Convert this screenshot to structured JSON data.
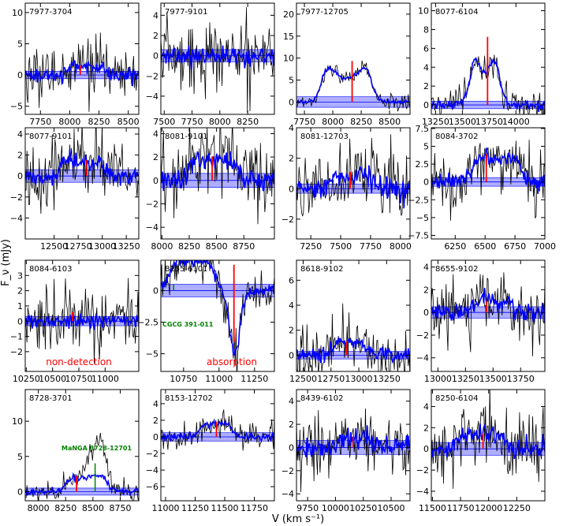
{
  "figure": {
    "ylabel": "F_ν (mJy)",
    "xlabel": "V (km s⁻¹)",
    "colors": {
      "spectrum": "#000000",
      "model": "#0000ff",
      "band": "#6b6bff",
      "marker": "#ff0000",
      "companion": "#008000",
      "note": "#ff0000"
    }
  },
  "chart_data": [
    {
      "type": "line",
      "title": "7977-3704",
      "xlim": [
        7620,
        8590
      ],
      "ylim": [
        -6.3,
        11.5
      ],
      "xticks": [
        7750,
        8000,
        8250,
        8500
      ],
      "yticks": [
        -5,
        0,
        5,
        10
      ],
      "profile": {
        "v1": 7980,
        "v2": 8300,
        "peak": 1.8,
        "horn": 0.2
      },
      "noise": 2.1,
      "band": 0.6,
      "vsys": 8090
    },
    {
      "type": "line",
      "title": "7977-9101",
      "xlim": [
        7470,
        8490
      ],
      "ylim": [
        -5.8,
        5.2
      ],
      "xticks": [
        7500,
        7750,
        8000,
        8250
      ],
      "yticks": [
        -4,
        -2,
        0,
        2,
        4
      ],
      "profile": null,
      "noise": 1.7,
      "band": 0.6,
      "vsys": null
    },
    {
      "type": "line",
      "title": "7977-12705",
      "xlim": [
        7680,
        8680
      ],
      "ylim": [
        -2.8,
        22.5
      ],
      "xticks": [
        7750,
        8000,
        8250,
        8500
      ],
      "yticks": [
        0,
        5,
        10,
        15,
        20
      ],
      "profile": {
        "v1": 7910,
        "v2": 8330,
        "peak": 11,
        "horn": 0.5
      },
      "noise": 0.9,
      "band": 1.2,
      "vsys": 8170
    },
    {
      "type": "line",
      "title": "8077-6104",
      "xlim": [
        13210,
        14270
      ],
      "ylim": [
        -1,
        10.8
      ],
      "xticks": [
        13250,
        13500,
        13750,
        14000
      ],
      "yticks": [
        0,
        2,
        4,
        6,
        8,
        10
      ],
      "profile": {
        "v1": 13600,
        "v2": 13820,
        "peak": 8.5,
        "horn": 0.6
      },
      "noise": 0.8,
      "band": 0.4,
      "vsys": 13735
    },
    {
      "type": "line",
      "title": "8077-9101",
      "xlim": [
        12200,
        13380
      ],
      "ylim": [
        -6,
        4.6
      ],
      "xticks": [
        12500,
        12750,
        13000,
        13250
      ],
      "yticks": [
        -4,
        -2,
        0,
        2,
        4
      ],
      "profile": {
        "v1": 12570,
        "v2": 13020,
        "peak": 1.8,
        "horn": 0.3
      },
      "noise": 1.6,
      "band": 0.6,
      "vsys": 12840
    },
    {
      "type": "line",
      "title": "8081-9101",
      "xlim": [
        7990,
        9030
      ],
      "ylim": [
        -5,
        4.5
      ],
      "xticks": [
        8000,
        8250,
        8500,
        8750
      ],
      "yticks": [
        -4,
        -2,
        0,
        2,
        4
      ],
      "profile": {
        "v1": 8250,
        "v2": 8680,
        "peak": 2.4,
        "horn": 0.3
      },
      "noise": 1.7,
      "band": 0.6,
      "vsys": 8460
    },
    {
      "type": "line",
      "title": "8081-12703",
      "xlim": [
        7130,
        8080
      ],
      "ylim": [
        -3.3,
        4
      ],
      "xticks": [
        7250,
        7500,
        7750,
        8000
      ],
      "yticks": [
        -2,
        0,
        2,
        4
      ],
      "profile": {
        "v1": 7420,
        "v2": 7750,
        "peak": 1.3,
        "horn": 0.4
      },
      "noise": 1.1,
      "band": 0.3,
      "vsys": 7580
    },
    {
      "type": "line",
      "title": "8084-3702",
      "xlim": [
        6050,
        7000
      ],
      "ylim": [
        -8,
        7.6
      ],
      "xticks": [
        6250,
        6500,
        6750,
        7000
      ],
      "yticks": [
        -7.5,
        -5,
        -2.5,
        0,
        2.5,
        5,
        7.5
      ],
      "profile": {
        "v1": 6400,
        "v2": 6780,
        "peak": 4.6,
        "horn": 0.3
      },
      "noise": 2,
      "band": 0.6,
      "vsys": 6510
    },
    {
      "type": "line",
      "title": "8084-6103",
      "xlim": [
        10240,
        11320
      ],
      "ylim": [
        -3.3,
        4
      ],
      "xticks": [
        10250,
        10500,
        10750,
        11000
      ],
      "yticks": [
        -2,
        -1,
        0,
        1,
        2,
        3
      ],
      "profile": null,
      "noise": 1,
      "band": 0.3,
      "vsys": 10690,
      "note": "non-detection"
    },
    {
      "type": "line",
      "title": "8155-6101",
      "xlim": [
        10590,
        11390
      ],
      "ylim": [
        -6.4,
        2.4
      ],
      "xticks": [
        10750,
        11000,
        11250
      ],
      "yticks": [
        -5,
        -2.5,
        0,
        2.5
      ],
      "profile": {
        "v1": 10660,
        "v2": 10960,
        "peak": 3.2,
        "horn": 0.3
      },
      "noise": 0.8,
      "band": 0.5,
      "vsys": 11105,
      "absorption": {
        "v": 11110,
        "depth": -5.1,
        "width": 80
      },
      "companion_label": "CGCG 391-011",
      "companion_v": 10680,
      "note": "absorption"
    },
    {
      "type": "line",
      "title": "8618-9102",
      "xlim": [
        12440,
        13460
      ],
      "ylim": [
        -1.3,
        7.6
      ],
      "xticks": [
        12500,
        12750,
        13000,
        13250
      ],
      "yticks": [
        0,
        2,
        4,
        6
      ],
      "profile": {
        "v1": 12780,
        "v2": 13060,
        "peak": 1.3,
        "horn": 0.2
      },
      "noise": 1.1,
      "band": 0.3,
      "vsys": 12890
    },
    {
      "type": "line",
      "title": "8655-9102",
      "xlim": [
        12940,
        13970
      ],
      "ylim": [
        -5.2,
        4.6
      ],
      "xticks": [
        13000,
        13250,
        13500,
        13750
      ],
      "yticks": [
        -4,
        -2,
        0,
        2,
        4
      ],
      "profile": {
        "v1": 13320,
        "v2": 13680,
        "peak": 1.2,
        "horn": 0.2
      },
      "noise": 1.5,
      "band": 0.5,
      "vsys": 13440
    },
    {
      "type": "line",
      "title": "8728-3701",
      "xlim": [
        7880,
        8920
      ],
      "ylim": [
        -1.3,
        14.5
      ],
      "xticks": [
        8000,
        8250,
        8500,
        8750
      ],
      "yticks": [
        0,
        5,
        10
      ],
      "profile": {
        "v1": 8260,
        "v2": 8420,
        "peak": 2.6,
        "horn": 0.2
      },
      "noise": 0.7,
      "band": 0.5,
      "vsys": 8350,
      "companion_label": "MaNGA 8728-12701",
      "companion_v": 8520,
      "companion_profile": {
        "v1": 8480,
        "v2": 8600,
        "peak": 11.5,
        "horn": 0.3
      }
    },
    {
      "type": "line",
      "title": "8153-12702",
      "xlim": [
        10960,
        11920
      ],
      "ylim": [
        -7.7,
        5.7
      ],
      "xticks": [
        11000,
        11250,
        11500,
        11750
      ],
      "yticks": [
        -6,
        -4,
        -2,
        0,
        2,
        4
      ],
      "profile": {
        "v1": 11300,
        "v2": 11560,
        "peak": 2.1,
        "horn": 0.3
      },
      "noise": 0.8,
      "band": 0.5,
      "vsys": 11430
    },
    {
      "type": "line",
      "title": "8439-6102",
      "xlim": [
        9650,
        10670
      ],
      "ylim": [
        -4.6,
        5
      ],
      "xticks": [
        9750,
        10000,
        10250,
        10500
      ],
      "yticks": [
        -4,
        -2,
        0,
        2,
        4
      ],
      "profile": {
        "v1": 10050,
        "v2": 10320,
        "peak": 1.1,
        "horn": 0.2
      },
      "noise": 1.4,
      "band": 0.6,
      "vsys": 10160
    },
    {
      "type": "line",
      "title": "8250-6104",
      "xlim": [
        11490,
        12500
      ],
      "ylim": [
        -4.9,
        5.6
      ],
      "xticks": [
        11500,
        11750,
        12000,
        12250
      ],
      "yticks": [
        -4,
        -2,
        0,
        2,
        4
      ],
      "profile": {
        "v1": 11720,
        "v2": 12120,
        "peak": 1.7,
        "horn": 0.2
      },
      "noise": 1.6,
      "band": 0.6,
      "vsys": 11950
    }
  ]
}
